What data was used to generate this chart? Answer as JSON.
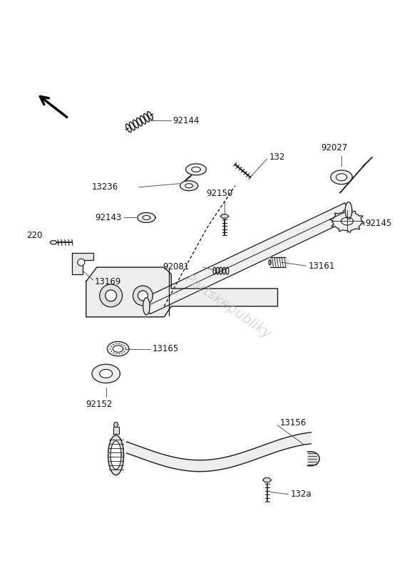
{
  "bg_color": "#ffffff",
  "watermark": "Partskepubliky",
  "line_color": "#1a1a1a",
  "label_color": "#111111",
  "label_fs": 8.5,
  "fig_w": 5.78,
  "fig_h": 8.0,
  "dpi": 100
}
